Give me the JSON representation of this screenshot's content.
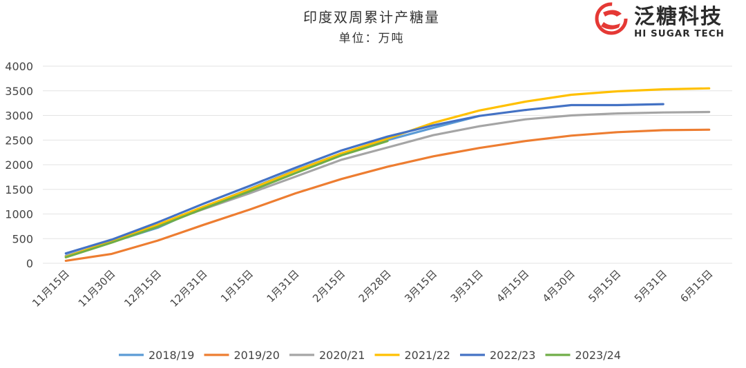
{
  "brand": {
    "name_cn": "泛糖科技",
    "name_en": "HI SUGAR TECH",
    "color": "#e53935"
  },
  "chart_data": {
    "type": "line",
    "title": "印度双周累计产糖量",
    "subtitle": "单位：万吨",
    "xlabel": "",
    "ylabel": "",
    "ylim": [
      0,
      4000
    ],
    "yticks": [
      0,
      500,
      1000,
      1500,
      2000,
      2500,
      3000,
      3500,
      4000
    ],
    "grid": true,
    "legend_position": "bottom",
    "categories": [
      "11月15日",
      "11月30日",
      "12月15日",
      "12月31日",
      "1月15日",
      "1月31日",
      "2月15日",
      "2月28日",
      "3月15日",
      "3月31日",
      "4月15日",
      "4月30日",
      "5月15日",
      "5月31日",
      "6月15日"
    ],
    "series": [
      {
        "name": "2018/19",
        "color": "#5b9bd5",
        "values": [
          150,
          430,
          720,
          1140,
          1510,
          1890,
          2230,
          2500,
          2750,
          2990,
          null,
          null,
          null,
          null,
          null
        ]
      },
      {
        "name": "2019/20",
        "color": "#ed7d31",
        "values": [
          50,
          190,
          460,
          780,
          1090,
          1420,
          1710,
          1960,
          2170,
          2340,
          2480,
          2590,
          2660,
          2700,
          2710
        ]
      },
      {
        "name": "2020/21",
        "color": "#a5a5a5",
        "values": [
          140,
          440,
          770,
          1100,
          1420,
          1760,
          2100,
          2350,
          2600,
          2780,
          2920,
          3000,
          3040,
          3060,
          3070
        ]
      },
      {
        "name": "2021/22",
        "color": "#ffc000",
        "values": [
          130,
          450,
          780,
          1150,
          1500,
          1880,
          2230,
          2530,
          2850,
          3100,
          3280,
          3420,
          3490,
          3530,
          3550
        ]
      },
      {
        "name": "2022/23",
        "color": "#4472c4",
        "values": [
          200,
          480,
          830,
          1210,
          1570,
          1940,
          2290,
          2570,
          2800,
          2990,
          3110,
          3210,
          3210,
          3230,
          null
        ]
      },
      {
        "name": "2023/24",
        "color": "#70ad47",
        "values": [
          120,
          420,
          740,
          1110,
          1460,
          1830,
          2190,
          2480,
          null,
          null,
          null,
          null,
          null,
          null,
          null
        ]
      }
    ]
  }
}
